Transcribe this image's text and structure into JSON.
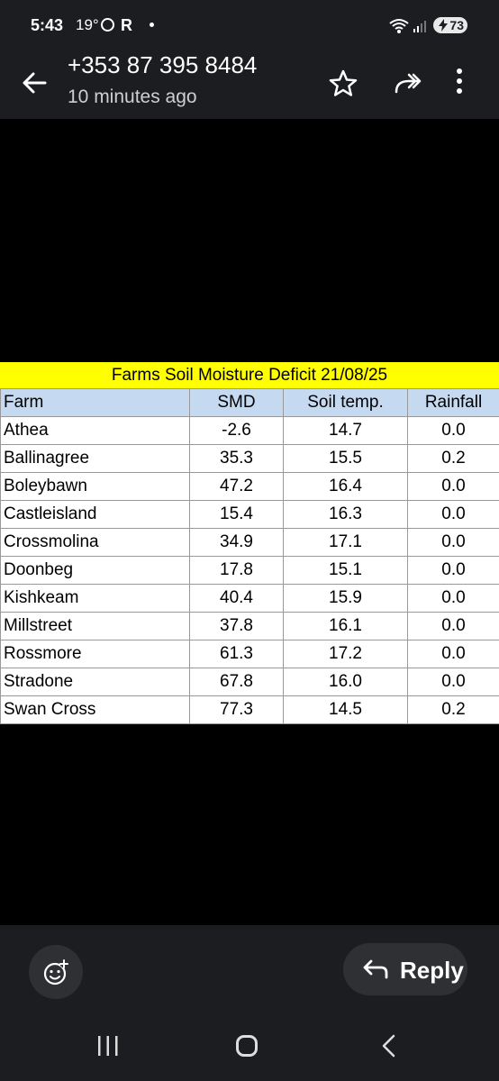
{
  "status_bar": {
    "time": "5:43",
    "temperature": "19°",
    "r_icon": "R",
    "battery": "73"
  },
  "header": {
    "title": "+353 87 395 8484",
    "subtitle": "10 minutes ago"
  },
  "sheet": {
    "title": "Farms Soil Moisture Deficit 21/08/25",
    "columns": [
      "Farm",
      "SMD",
      "Soil temp.",
      "Rainfall"
    ],
    "rows": [
      [
        "Athea",
        "-2.6",
        "14.7",
        "0.0"
      ],
      [
        "Ballinagree",
        "35.3",
        "15.5",
        "0.2"
      ],
      [
        "Boleybawn",
        "47.2",
        "16.4",
        "0.0"
      ],
      [
        "Castleisland",
        "15.4",
        "16.3",
        "0.0"
      ],
      [
        "Crossmolina",
        "34.9",
        "17.1",
        "0.0"
      ],
      [
        "Doonbeg",
        "17.8",
        "15.1",
        "0.0"
      ],
      [
        "Kishkeam",
        "40.4",
        "15.9",
        "0.0"
      ],
      [
        "Millstreet",
        "37.8",
        "16.1",
        "0.0"
      ],
      [
        "Rossmore",
        "61.3",
        "17.2",
        "0.0"
      ],
      [
        "Stradone",
        "67.8",
        "16.0",
        "0.0"
      ],
      [
        "Swan Cross",
        "77.3",
        "14.5",
        "0.2"
      ]
    ]
  },
  "actions": {
    "reply_label": "Reply"
  },
  "colors": {
    "bar_bg": "#1b1d20",
    "button_bg": "#2e3033",
    "title_fill": "#ffff00",
    "header_fill": "#c5d9f1"
  },
  "icons": [
    "back-arrow-icon",
    "star-icon",
    "forward-icon",
    "more-vert-icon",
    "emoji-add-icon",
    "reply-arrow-icon",
    "recent-apps-icon",
    "home-icon",
    "nav-back-icon"
  ]
}
